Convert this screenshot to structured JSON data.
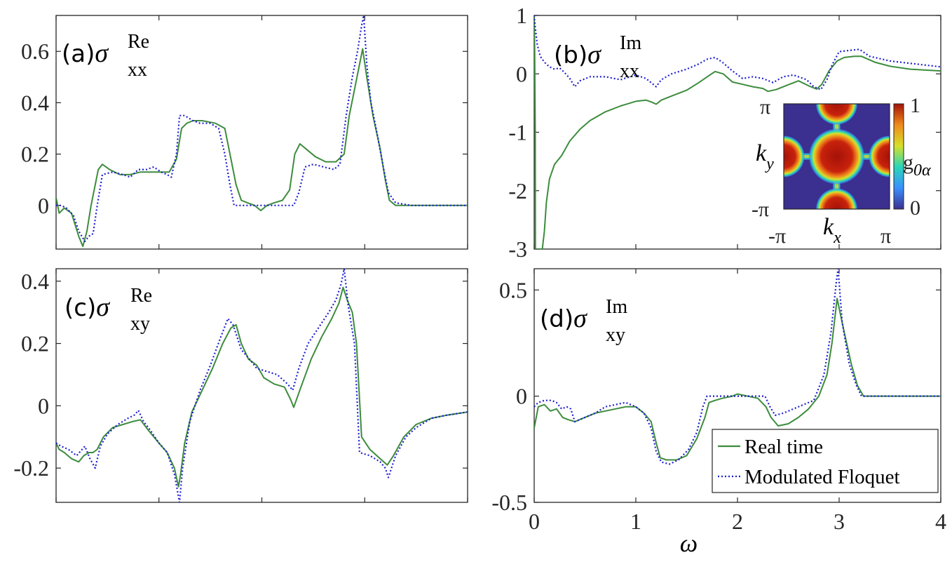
{
  "chart_data": [
    {
      "id": "a",
      "type": "line",
      "panel_label": "(a)",
      "symbol": "σ",
      "superscript": "Re",
      "subscript": "xx",
      "xlabel": "",
      "xlim": [
        0,
        4
      ],
      "ylim": [
        -0.17,
        0.74
      ],
      "xticks": [
        0,
        1,
        2,
        3,
        4
      ],
      "xticklabels": [
        "",
        "",
        "",
        "",
        ""
      ],
      "yticks": [
        0,
        0.2,
        0.4,
        0.6
      ],
      "yticklabels": [
        "0",
        "0.2",
        "0.4",
        "0.6"
      ],
      "series": [
        {
          "name": "Real time",
          "color": "#3d8c3d",
          "style": "solid",
          "x": [
            0,
            0.03,
            0.08,
            0.15,
            0.22,
            0.26,
            0.3,
            0.34,
            0.38,
            0.41,
            0.45,
            0.52,
            0.62,
            0.72,
            0.82,
            0.92,
            1.0,
            1.1,
            1.17,
            1.22,
            1.27,
            1.33,
            1.42,
            1.55,
            1.64,
            1.7,
            1.75,
            1.8,
            1.86,
            1.93,
            1.99,
            2.05,
            2.12,
            2.2,
            2.27,
            2.32,
            2.37,
            2.43,
            2.52,
            2.62,
            2.72,
            2.8,
            2.85,
            2.9,
            2.95,
            2.98,
            3.02,
            3.08,
            3.15,
            3.2,
            3.24,
            3.3,
            3.4,
            3.6,
            3.8,
            4.0
          ],
          "y": [
            0.03,
            -0.03,
            -0.01,
            -0.03,
            -0.12,
            -0.16,
            -0.1,
            0.0,
            0.08,
            0.14,
            0.16,
            0.14,
            0.12,
            0.12,
            0.13,
            0.13,
            0.13,
            0.13,
            0.18,
            0.3,
            0.32,
            0.33,
            0.33,
            0.32,
            0.3,
            0.18,
            0.08,
            0.02,
            0.01,
            0.0,
            -0.02,
            0.0,
            0.01,
            0.02,
            0.06,
            0.2,
            0.24,
            0.22,
            0.19,
            0.17,
            0.17,
            0.2,
            0.35,
            0.45,
            0.55,
            0.61,
            0.5,
            0.35,
            0.22,
            0.1,
            0.02,
            0.0,
            0.0,
            0.0,
            0.0,
            0.0
          ]
        },
        {
          "name": "Modulated Floquet",
          "color": "#1f1fd0",
          "style": "dotted",
          "x": [
            0,
            0.05,
            0.1,
            0.17,
            0.22,
            0.25,
            0.28,
            0.32,
            0.36,
            0.4,
            0.45,
            0.55,
            0.65,
            0.72,
            0.8,
            0.88,
            0.95,
            1.02,
            1.08,
            1.12,
            1.17,
            1.2,
            1.25,
            1.33,
            1.4,
            1.5,
            1.58,
            1.64,
            1.69,
            1.73,
            1.78,
            1.85,
            1.93,
            1.98,
            2.05,
            2.12,
            2.2,
            2.27,
            2.31,
            2.36,
            2.42,
            2.5,
            2.6,
            2.7,
            2.76,
            2.82,
            2.88,
            2.93,
            2.97,
            2.99,
            3.02,
            3.06,
            3.12,
            3.18,
            3.23,
            3.3,
            3.45,
            3.65,
            3.85,
            4.0
          ],
          "y": [
            0.0,
            0.0,
            -0.01,
            -0.04,
            -0.1,
            -0.12,
            -0.14,
            -0.12,
            -0.11,
            0.0,
            0.12,
            0.13,
            0.12,
            0.11,
            0.14,
            0.14,
            0.15,
            0.13,
            0.12,
            0.11,
            0.2,
            0.35,
            0.35,
            0.33,
            0.32,
            0.32,
            0.3,
            0.2,
            0.08,
            0.0,
            0.0,
            0.0,
            0.0,
            0.0,
            0.0,
            0.0,
            0.0,
            0.0,
            0.0,
            0.05,
            0.15,
            0.16,
            0.15,
            0.14,
            0.16,
            0.35,
            0.5,
            0.6,
            0.7,
            0.74,
            0.55,
            0.4,
            0.28,
            0.15,
            0.05,
            0.01,
            0.0,
            0.0,
            0.0,
            0.0
          ]
        }
      ]
    },
    {
      "id": "b",
      "type": "line",
      "panel_label": "(b)",
      "symbol": "σ",
      "superscript": "Im",
      "subscript": "xx",
      "xlabel": "",
      "xlim": [
        0,
        4
      ],
      "ylim": [
        -3,
        1
      ],
      "xticks": [
        0,
        1,
        2,
        3,
        4
      ],
      "xticklabels": [
        "",
        "",
        "",
        "",
        ""
      ],
      "yticks": [
        -3,
        -2,
        -1,
        0,
        1
      ],
      "yticklabels": [
        "-3",
        "-2",
        "-1",
        "0",
        "1"
      ],
      "series": [
        {
          "name": "Real time",
          "color": "#3d8c3d",
          "style": "solid",
          "x": [
            0.0,
            0.005,
            0.01,
            0.012,
            0.02,
            0.05,
            0.08,
            0.1,
            0.12,
            0.15,
            0.2,
            0.27,
            0.35,
            0.45,
            0.55,
            0.7,
            0.85,
            1.0,
            1.1,
            1.15,
            1.2,
            1.25,
            1.35,
            1.5,
            1.62,
            1.72,
            1.78,
            1.86,
            1.95,
            2.05,
            2.15,
            2.25,
            2.3,
            2.38,
            2.48,
            2.6,
            2.72,
            2.78,
            2.83,
            2.9,
            2.98,
            3.05,
            3.15,
            3.22,
            3.35,
            3.5,
            3.7,
            4.0
          ],
          "y": [
            1.0,
            0.4,
            -1.0,
            -3.0,
            -3.0,
            -3.0,
            -3.0,
            -2.7,
            -2.2,
            -1.8,
            -1.55,
            -1.4,
            -1.15,
            -0.95,
            -0.8,
            -0.65,
            -0.55,
            -0.47,
            -0.45,
            -0.48,
            -0.52,
            -0.45,
            -0.38,
            -0.28,
            -0.15,
            -0.03,
            0.04,
            0.0,
            -0.14,
            -0.18,
            -0.22,
            -0.25,
            -0.3,
            -0.27,
            -0.2,
            -0.12,
            -0.22,
            -0.26,
            -0.18,
            0.05,
            0.22,
            0.28,
            0.3,
            0.3,
            0.2,
            0.13,
            0.08,
            0.05
          ]
        },
        {
          "name": "Modulated Floquet",
          "color": "#1f1fd0",
          "style": "dotted",
          "x": [
            0.0,
            0.01,
            0.03,
            0.06,
            0.1,
            0.15,
            0.2,
            0.25,
            0.3,
            0.35,
            0.4,
            0.45,
            0.55,
            0.7,
            0.85,
            1.0,
            1.1,
            1.15,
            1.2,
            1.25,
            1.35,
            1.5,
            1.62,
            1.7,
            1.78,
            1.85,
            1.95,
            2.05,
            2.15,
            2.25,
            2.35,
            2.45,
            2.55,
            2.68,
            2.75,
            2.82,
            2.88,
            2.93,
            3.0,
            3.1,
            3.2,
            3.3,
            3.5,
            3.7,
            4.0
          ],
          "y": [
            1.0,
            0.8,
            0.5,
            0.3,
            0.2,
            0.12,
            0.08,
            0.1,
            0.02,
            -0.08,
            -0.22,
            -0.12,
            -0.05,
            -0.05,
            -0.1,
            -0.02,
            -0.08,
            -0.15,
            -0.22,
            -0.1,
            0.0,
            0.08,
            0.17,
            0.25,
            0.28,
            0.2,
            0.05,
            -0.08,
            -0.05,
            -0.08,
            -0.15,
            -0.05,
            -0.02,
            -0.1,
            -0.22,
            -0.27,
            -0.1,
            0.15,
            0.38,
            0.4,
            0.42,
            0.3,
            0.22,
            0.18,
            0.12
          ]
        }
      ],
      "inset": {
        "type": "heatmap",
        "xlabel_symbol": "k",
        "xlabel_sub": "x",
        "ylabel_symbol": "k",
        "ylabel_sub": "y",
        "xticklabels": [
          "-π",
          "π"
        ],
        "yticklabels": [
          "π",
          "-π"
        ],
        "colorbar_label": "g",
        "colorbar_sub": "0α",
        "colorbar_ticks": [
          "1",
          "0"
        ],
        "colors": [
          "#3b2f8f",
          "#3a8fff",
          "#29d6b8",
          "#d6e02a",
          "#f08a1c",
          "#a41208"
        ]
      }
    },
    {
      "id": "c",
      "type": "line",
      "panel_label": "(c)",
      "symbol": "σ",
      "superscript": "Re",
      "subscript": "xy",
      "xlabel": "",
      "xlim": [
        0,
        4
      ],
      "ylim": [
        -0.31,
        0.44
      ],
      "xticks": [
        0,
        1,
        2,
        3,
        4
      ],
      "xticklabels": [
        "",
        "",
        "",
        "",
        ""
      ],
      "yticks": [
        -0.2,
        0,
        0.2,
        0.4
      ],
      "yticklabels": [
        "-0.2",
        "0",
        "0.2",
        "0.4"
      ],
      "series": [
        {
          "name": "Real time",
          "color": "#3d8c3d",
          "style": "solid",
          "x": [
            0,
            0.03,
            0.08,
            0.15,
            0.22,
            0.27,
            0.32,
            0.36,
            0.4,
            0.46,
            0.55,
            0.65,
            0.75,
            0.82,
            0.9,
            1.0,
            1.08,
            1.15,
            1.19,
            1.21,
            1.25,
            1.32,
            1.42,
            1.52,
            1.62,
            1.7,
            1.75,
            1.8,
            1.87,
            1.95,
            2.02,
            2.12,
            2.22,
            2.28,
            2.31,
            2.38,
            2.48,
            2.58,
            2.68,
            2.75,
            2.79,
            2.83,
            2.88,
            2.92,
            2.97,
            3.05,
            3.15,
            3.22,
            3.28,
            3.38,
            3.5,
            3.65,
            3.8,
            4.0
          ],
          "y": [
            -0.12,
            -0.14,
            -0.15,
            -0.17,
            -0.18,
            -0.16,
            -0.15,
            -0.15,
            -0.14,
            -0.1,
            -0.07,
            -0.06,
            -0.05,
            -0.045,
            -0.08,
            -0.12,
            -0.15,
            -0.2,
            -0.26,
            -0.22,
            -0.12,
            -0.02,
            0.05,
            0.12,
            0.2,
            0.25,
            0.26,
            0.2,
            0.15,
            0.13,
            0.09,
            0.07,
            0.06,
            0.02,
            -0.005,
            0.06,
            0.15,
            0.22,
            0.28,
            0.33,
            0.38,
            0.34,
            0.3,
            0.2,
            -0.1,
            -0.14,
            -0.17,
            -0.19,
            -0.16,
            -0.1,
            -0.06,
            -0.04,
            -0.03,
            -0.02
          ]
        },
        {
          "name": "Modulated Floquet",
          "color": "#1f1fd0",
          "style": "dotted",
          "x": [
            0,
            0.05,
            0.12,
            0.2,
            0.28,
            0.33,
            0.38,
            0.43,
            0.5,
            0.6,
            0.7,
            0.76,
            0.8,
            0.85,
            0.92,
            1.0,
            1.08,
            1.15,
            1.2,
            1.23,
            1.3,
            1.4,
            1.5,
            1.6,
            1.67,
            1.72,
            1.8,
            1.88,
            1.95,
            2.05,
            2.15,
            2.25,
            2.3,
            2.36,
            2.45,
            2.55,
            2.65,
            2.72,
            2.77,
            2.8,
            2.84,
            2.9,
            2.95,
            3.05,
            3.15,
            3.2,
            3.23,
            3.3,
            3.4,
            3.5,
            3.65,
            3.8,
            4.0
          ],
          "y": [
            -0.12,
            -0.13,
            -0.14,
            -0.16,
            -0.13,
            -0.17,
            -0.2,
            -0.13,
            -0.09,
            -0.06,
            -0.04,
            -0.03,
            -0.015,
            -0.05,
            -0.08,
            -0.12,
            -0.15,
            -0.22,
            -0.31,
            -0.2,
            -0.05,
            0.05,
            0.13,
            0.22,
            0.28,
            0.26,
            0.18,
            0.15,
            0.12,
            0.11,
            0.1,
            0.07,
            0.05,
            0.12,
            0.2,
            0.25,
            0.3,
            0.34,
            0.39,
            0.44,
            0.32,
            0.2,
            -0.15,
            -0.16,
            -0.18,
            -0.2,
            -0.23,
            -0.16,
            -0.1,
            -0.07,
            -0.04,
            -0.03,
            -0.02
          ]
        }
      ]
    },
    {
      "id": "d",
      "type": "line",
      "panel_label": "(d)",
      "symbol": "σ",
      "superscript": "Im",
      "subscript": "xy",
      "xlabel": "ω",
      "xlim": [
        0,
        4
      ],
      "ylim": [
        -0.5,
        0.6
      ],
      "xticks": [
        0,
        1,
        2,
        3,
        4
      ],
      "xticklabels": [
        "0",
        "1",
        "2",
        "3",
        "4"
      ],
      "yticks": [
        -0.5,
        0,
        0.5
      ],
      "yticklabels": [
        "-0.5",
        "0",
        "0.5"
      ],
      "legend": {
        "position": "lower-right",
        "entries": [
          "Real time",
          "Modulated Floquet"
        ]
      },
      "series": [
        {
          "name": "Real time",
          "color": "#3d8c3d",
          "style": "solid",
          "x": [
            0,
            0.04,
            0.1,
            0.16,
            0.22,
            0.28,
            0.33,
            0.4,
            0.5,
            0.6,
            0.7,
            0.8,
            0.9,
            1.0,
            1.08,
            1.15,
            1.2,
            1.24,
            1.3,
            1.4,
            1.5,
            1.6,
            1.68,
            1.72,
            1.78,
            1.85,
            1.95,
            2.0,
            2.1,
            2.2,
            2.28,
            2.33,
            2.4,
            2.5,
            2.6,
            2.7,
            2.8,
            2.88,
            2.93,
            2.98,
            3.05,
            3.12,
            3.18,
            3.24,
            3.3,
            3.5,
            3.7,
            4.0
          ],
          "y": [
            -0.15,
            -0.05,
            -0.04,
            -0.07,
            -0.06,
            -0.1,
            -0.11,
            -0.12,
            -0.1,
            -0.08,
            -0.07,
            -0.06,
            -0.05,
            -0.05,
            -0.08,
            -0.12,
            -0.22,
            -0.29,
            -0.3,
            -0.3,
            -0.28,
            -0.2,
            -0.1,
            -0.03,
            -0.02,
            -0.01,
            0.0,
            0.01,
            0.0,
            -0.01,
            -0.05,
            -0.1,
            -0.14,
            -0.13,
            -0.1,
            -0.06,
            0.0,
            0.1,
            0.25,
            0.46,
            0.3,
            0.15,
            0.05,
            0.0,
            0.0,
            0.0,
            0.0,
            0.0
          ]
        },
        {
          "name": "Modulated Floquet",
          "color": "#1f1fd0",
          "style": "dotted",
          "x": [
            0,
            0.04,
            0.1,
            0.17,
            0.22,
            0.27,
            0.32,
            0.36,
            0.4,
            0.5,
            0.6,
            0.7,
            0.8,
            0.9,
            1.0,
            1.08,
            1.15,
            1.2,
            1.25,
            1.33,
            1.42,
            1.52,
            1.6,
            1.66,
            1.7,
            1.8,
            1.9,
            2.0,
            2.1,
            2.2,
            2.27,
            2.32,
            2.37,
            2.45,
            2.55,
            2.65,
            2.75,
            2.85,
            2.92,
            2.97,
            2.99,
            3.03,
            3.1,
            3.17,
            3.22,
            3.3,
            3.5,
            3.7,
            4.0
          ],
          "y": [
            -0.05,
            -0.03,
            -0.02,
            -0.02,
            -0.03,
            -0.06,
            -0.05,
            -0.06,
            -0.12,
            -0.1,
            -0.08,
            -0.05,
            -0.04,
            -0.03,
            -0.05,
            -0.08,
            -0.15,
            -0.26,
            -0.31,
            -0.32,
            -0.3,
            -0.25,
            -0.17,
            -0.05,
            0.0,
            0.0,
            0.0,
            0.0,
            0.0,
            0.0,
            0.0,
            -0.05,
            -0.09,
            -0.08,
            -0.06,
            -0.04,
            -0.02,
            0.1,
            0.3,
            0.53,
            0.6,
            0.35,
            0.15,
            0.05,
            0.0,
            0.0,
            0.0,
            0.0,
            0.0
          ]
        }
      ]
    }
  ]
}
